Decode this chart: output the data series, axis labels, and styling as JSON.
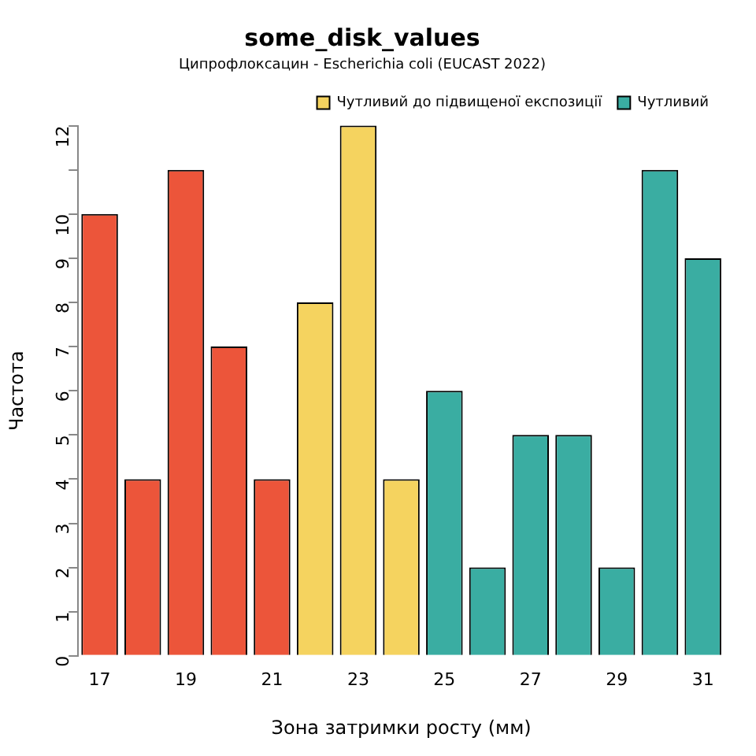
{
  "chart_data": {
    "type": "bar",
    "title": "some_disk_values",
    "subtitle": "Ципрофлоксацин - Escherichia coli (EUCAST 2022)",
    "xlabel": "Зона затримки росту (мм)",
    "ylabel": "Частота",
    "categories": [
      "17",
      null,
      "19",
      null,
      "21",
      null,
      "23",
      null,
      "25",
      null,
      "27",
      null,
      "29",
      null,
      "31"
    ],
    "series": [
      {
        "color": "#ec553a",
        "values": [
          10,
          4,
          11,
          7,
          4,
          null,
          null,
          null,
          null,
          null,
          null,
          null,
          null,
          null,
          null
        ]
      },
      {
        "name": "Чутливий до підвищеної експозиції",
        "color": "#f5d35f",
        "values": [
          null,
          null,
          null,
          null,
          null,
          8,
          12,
          4,
          null,
          null,
          null,
          null,
          null,
          null,
          null
        ]
      },
      {
        "name": "Чутливий",
        "color": "#3aada2",
        "values": [
          null,
          null,
          null,
          null,
          null,
          null,
          null,
          null,
          6,
          2,
          5,
          5,
          2,
          11,
          9
        ]
      }
    ],
    "ylim": [
      0,
      12
    ],
    "yticks": [
      0,
      1,
      2,
      3,
      4,
      5,
      6,
      7,
      8,
      9,
      10,
      {
        "value": 11,
        "label": null
      },
      12
    ],
    "grid": false,
    "legend": "top right"
  }
}
